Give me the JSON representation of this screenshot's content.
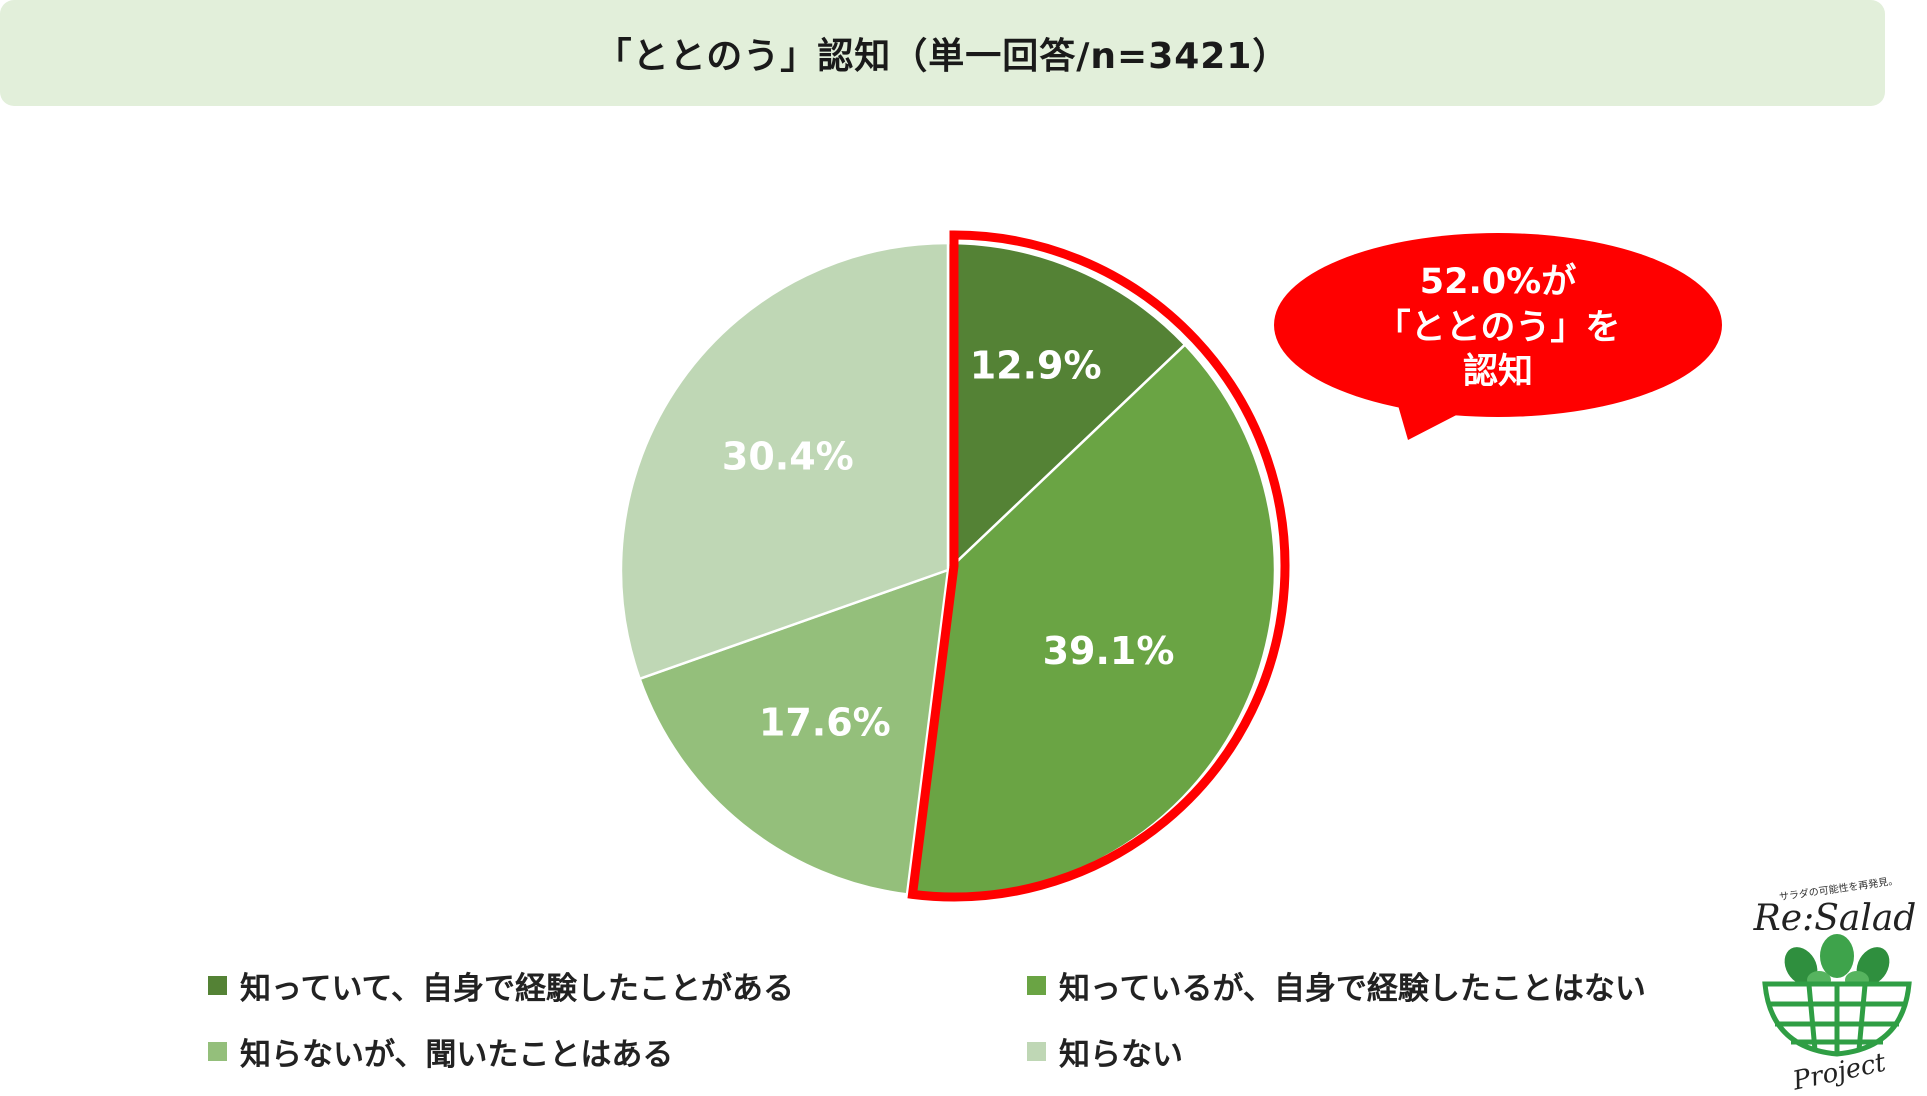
{
  "title": "「ととのう」認知（単一回答/n=3421）",
  "callout": {
    "line1": "52.0%が",
    "line2": "「ととのう」を",
    "line3": "認知",
    "color": "#ff0000"
  },
  "chart_data": {
    "type": "pie",
    "title": "「ととのう」認知（単一回答/n=3421）",
    "start": "12 o'clock",
    "direction": "clockwise",
    "slices": [
      {
        "label": "知っていて、自身で経験したことがある",
        "value": 12.9,
        "value_label": "12.9%",
        "color": "#548235"
      },
      {
        "label": "知っているが、自身で経験したことはない",
        "value": 39.1,
        "value_label": "39.1%",
        "color": "#6aa444"
      },
      {
        "label": "知らないが、聞いたことはある",
        "value": 17.6,
        "value_label": "17.6%",
        "color": "#94bf7b"
      },
      {
        "label": "知らない",
        "value": 30.4,
        "value_label": "30.4%",
        "color": "#bfd7b5"
      }
    ],
    "highlight": {
      "slices": [
        0,
        1
      ],
      "total": 52.0,
      "outline_color": "#ff0000"
    },
    "legend": "bottom"
  },
  "logo": {
    "tagline": "サラダの可能性を再発見。",
    "name_top": "Re:Salad",
    "name_bottom": "Project"
  }
}
